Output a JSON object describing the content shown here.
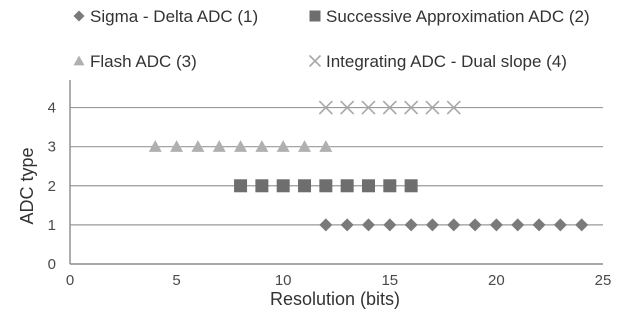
{
  "chart_data": {
    "type": "scatter",
    "title": "",
    "xlabel": "Resolution (bits)",
    "ylabel": "ADC type",
    "xlim": [
      0,
      25
    ],
    "ylim": [
      0,
      4.5
    ],
    "xticks": [
      "0",
      "5",
      "10",
      "15",
      "20",
      "25"
    ],
    "yticks": [
      "0",
      "1",
      "2",
      "3",
      "4"
    ],
    "grid": "horizontal",
    "legend_position": "top",
    "series": [
      {
        "name": "Sigma - Delta ADC (1)",
        "marker": "diamond",
        "color": "#7a7a7a",
        "x": [
          12,
          13,
          14,
          15,
          16,
          17,
          18,
          19,
          20,
          21,
          22,
          23,
          24
        ],
        "y": [
          1,
          1,
          1,
          1,
          1,
          1,
          1,
          1,
          1,
          1,
          1,
          1,
          1
        ]
      },
      {
        "name": "Successive Approximation ADC (2)",
        "marker": "square",
        "color": "#6e6e6e",
        "x": [
          8,
          9,
          10,
          11,
          12,
          13,
          14,
          15,
          16
        ],
        "y": [
          2,
          2,
          2,
          2,
          2,
          2,
          2,
          2,
          2
        ]
      },
      {
        "name": "Flash ADC (3)",
        "marker": "triangle",
        "color": "#b0b0b0",
        "x": [
          4,
          5,
          6,
          7,
          8,
          9,
          10,
          11,
          12
        ],
        "y": [
          3,
          3,
          3,
          3,
          3,
          3,
          3,
          3,
          3
        ]
      },
      {
        "name": "Integrating ADC - Dual slope (4)",
        "marker": "x",
        "color": "#a8a8a8",
        "x": [
          12,
          13,
          14,
          15,
          16,
          17,
          18
        ],
        "y": [
          4,
          4,
          4,
          4,
          4,
          4,
          4
        ]
      }
    ]
  }
}
